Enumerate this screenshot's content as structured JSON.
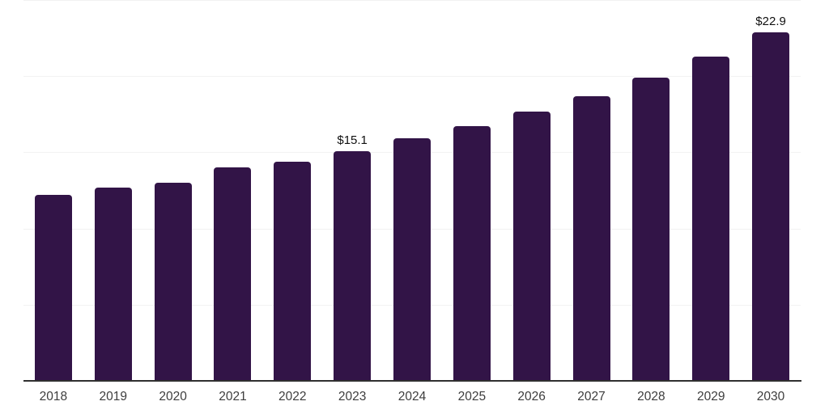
{
  "chart_data": {
    "type": "bar",
    "title": "",
    "xlabel": "",
    "ylabel": "",
    "categories": [
      "2018",
      "2019",
      "2020",
      "2021",
      "2022",
      "2023",
      "2024",
      "2025",
      "2026",
      "2027",
      "2028",
      "2029",
      "2030"
    ],
    "values": [
      12.2,
      12.7,
      13.0,
      14.0,
      14.4,
      15.1,
      15.9,
      16.7,
      17.7,
      18.7,
      19.9,
      21.3,
      22.9
    ],
    "unit_prefix": "$",
    "data_labels": [
      {
        "index": 5,
        "text": "$15.1"
      },
      {
        "index": 12,
        "text": "$22.9"
      }
    ],
    "ylim": [
      0,
      25
    ],
    "gridline_values": [
      5,
      10,
      15,
      20,
      25
    ],
    "grid": "horizontal-only",
    "legend": "none",
    "y_axis_ticks_visible": false,
    "colors": {
      "bar": "#321447",
      "gridline": "#f2f2f2",
      "axis_line": "#2f2f2f",
      "tick_label": "#3d3d3d",
      "data_label": "#111111",
      "background": "#ffffff"
    }
  }
}
